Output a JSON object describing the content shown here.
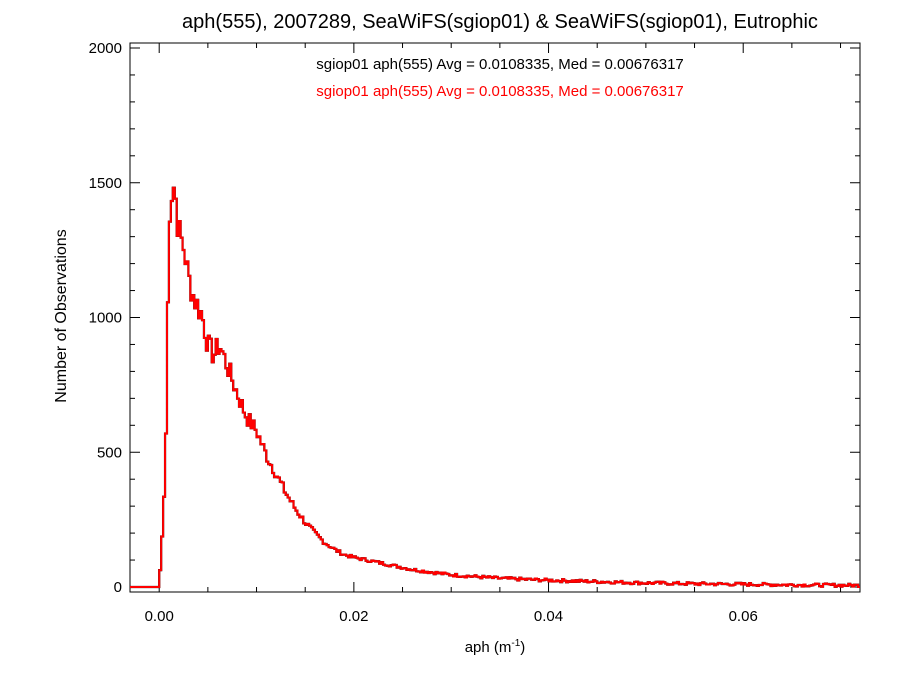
{
  "chart_data": {
    "type": "histogram",
    "title": "aph(555), 2007289, SeaWiFS(sgiop01) & SeaWiFS(sgiop01), Eutrophic",
    "xlabel_main": "aph (m",
    "xlabel_sup": "-1",
    "xlabel_close": ")",
    "ylabel": "Number of Observations",
    "xlim": [
      -0.003,
      0.072
    ],
    "ylim": [
      0,
      2000
    ],
    "x_ticks": [
      {
        "value": 0.0,
        "label": "0.00"
      },
      {
        "value": 0.02,
        "label": "0.02"
      },
      {
        "value": 0.04,
        "label": "0.04"
      },
      {
        "value": 0.06,
        "label": "0.06"
      }
    ],
    "y_ticks": [
      {
        "value": 0,
        "label": "0"
      },
      {
        "value": 500,
        "label": "500"
      },
      {
        "value": 1000,
        "label": "1000"
      },
      {
        "value": 1500,
        "label": "1500"
      },
      {
        "value": 2000,
        "label": "2000"
      }
    ],
    "x_minor_step": 0.005,
    "y_minor_step": 100,
    "bin_width": 0.0002,
    "annotations": [
      {
        "text": "sgiop01 aph(555) Avg = 0.0108335, Med = 0.00676317",
        "color": "#000000"
      },
      {
        "text": "sgiop01 aph(555) Avg = 0.0108335, Med = 0.00676317",
        "color": "#ff0000"
      }
    ],
    "series": [
      {
        "color": "#000000"
      },
      {
        "color": "#ff0000"
      }
    ],
    "anchors": [
      [
        -0.003,
        0
      ],
      [
        0.0,
        0
      ],
      [
        0.0004,
        250
      ],
      [
        0.0006,
        420
      ],
      [
        0.0008,
        720
      ],
      [
        0.001,
        1380
      ],
      [
        0.0014,
        1500
      ],
      [
        0.0016,
        1480
      ],
      [
        0.0018,
        1400
      ],
      [
        0.002,
        1320
      ],
      [
        0.0026,
        1250
      ],
      [
        0.003,
        1150
      ],
      [
        0.0036,
        1070
      ],
      [
        0.0044,
        1010
      ],
      [
        0.005,
        900
      ],
      [
        0.0056,
        860
      ],
      [
        0.0062,
        900
      ],
      [
        0.007,
        820
      ],
      [
        0.008,
        720
      ],
      [
        0.009,
        630
      ],
      [
        0.01,
        580
      ],
      [
        0.011,
        490
      ],
      [
        0.012,
        420
      ],
      [
        0.013,
        350
      ],
      [
        0.014,
        290
      ],
      [
        0.015,
        240
      ],
      [
        0.016,
        200
      ],
      [
        0.017,
        165
      ],
      [
        0.018,
        140
      ],
      [
        0.019,
        120
      ],
      [
        0.02,
        110
      ],
      [
        0.022,
        95
      ],
      [
        0.024,
        80
      ],
      [
        0.026,
        65
      ],
      [
        0.028,
        55
      ],
      [
        0.03,
        45
      ],
      [
        0.035,
        32
      ],
      [
        0.04,
        25
      ],
      [
        0.045,
        20
      ],
      [
        0.05,
        15
      ],
      [
        0.055,
        12
      ],
      [
        0.06,
        10
      ],
      [
        0.065,
        8
      ],
      [
        0.072,
        6
      ]
    ]
  }
}
